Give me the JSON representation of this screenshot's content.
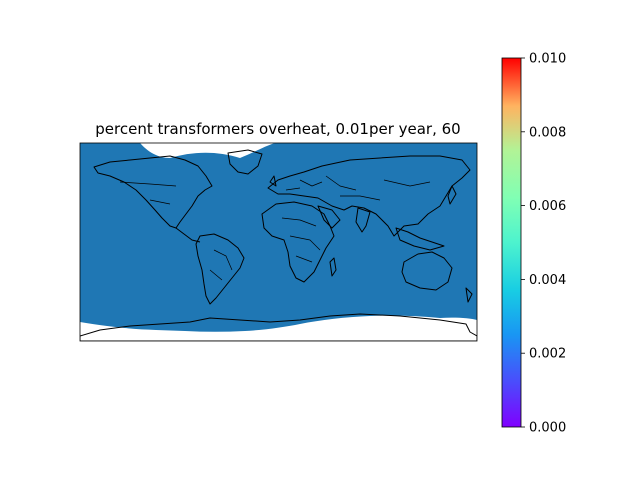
{
  "title": "percent transformers overheat, 0.01per year, 60",
  "map": {
    "projection": "equirectangular",
    "fill_color": "#1f77b4",
    "coastline_color": "#000000",
    "lon_range": [
      -180,
      180
    ],
    "lat_range": [
      -90,
      90
    ]
  },
  "colorbar": {
    "colormap": "rainbow",
    "range": [
      0.0,
      0.01
    ],
    "ticks": [
      "0.000",
      "0.002",
      "0.004",
      "0.006",
      "0.008",
      "0.010"
    ],
    "tick_values": [
      0.0,
      0.002,
      0.004,
      0.006,
      0.008,
      0.01
    ]
  }
}
